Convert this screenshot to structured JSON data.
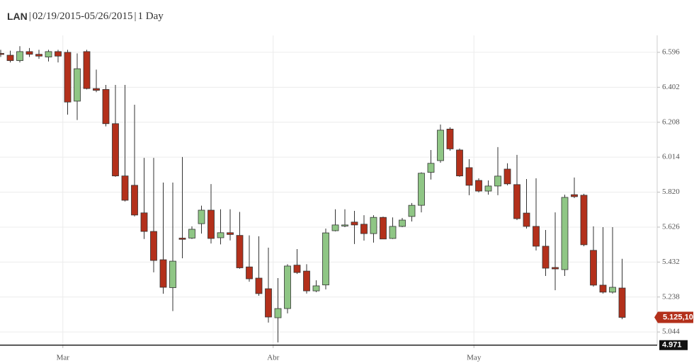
{
  "chart_data": {
    "type": "candlestick",
    "title_parts": [
      "LAN",
      "|",
      "02/19/2015-05/26/2015",
      "|",
      "1 Day"
    ],
    "categories": [
      null,
      null,
      null,
      null,
      null,
      null,
      null,
      "Mar",
      null,
      null,
      null,
      null,
      null,
      null,
      null,
      null,
      null,
      null,
      null,
      null,
      null,
      null,
      null,
      null,
      null,
      null,
      null,
      null,
      null,
      "Abr",
      null,
      null,
      null,
      null,
      null,
      null,
      null,
      null,
      null,
      null,
      null,
      null,
      null,
      null,
      null,
      null,
      null,
      null,
      null,
      null,
      "May",
      null,
      null,
      null,
      null,
      null,
      null,
      null,
      null,
      null,
      null,
      null,
      null,
      null,
      null,
      null
    ],
    "open": [
      6.59,
      6.58,
      6.55,
      6.6,
      6.585,
      6.57,
      6.6,
      6.596,
      6.325,
      6.6,
      6.395,
      6.39,
      6.2,
      5.91,
      5.858,
      5.705,
      5.602,
      5.445,
      5.29,
      5.565,
      5.565,
      5.645,
      5.72,
      5.567,
      5.595,
      5.58,
      5.405,
      5.343,
      5.284,
      5.123,
      5.174,
      5.415,
      5.382,
      5.272,
      5.305,
      5.606,
      5.632,
      5.654,
      5.642,
      5.59,
      5.68,
      5.563,
      5.63,
      5.685,
      5.747,
      5.93,
      5.995,
      6.17,
      6.054,
      5.956,
      5.885,
      5.826,
      5.854,
      5.948,
      5.862,
      5.704,
      5.63,
      5.52,
      5.402,
      5.39,
      5.806,
      5.803,
      5.497,
      5.304,
      5.265,
      5.288
    ],
    "high": [
      6.61,
      6.605,
      6.63,
      6.62,
      6.61,
      6.61,
      6.61,
      6.61,
      6.59,
      6.61,
      6.5,
      6.415,
      6.415,
      6.415,
      6.305,
      6.01,
      6.01,
      5.873,
      5.873,
      6.015,
      5.63,
      5.745,
      5.865,
      5.725,
      5.725,
      5.71,
      5.58,
      5.575,
      5.512,
      5.343,
      5.42,
      5.504,
      5.42,
      5.331,
      5.618,
      5.725,
      5.725,
      5.716,
      5.692,
      5.692,
      5.684,
      5.68,
      5.677,
      5.76,
      5.93,
      6.054,
      6.195,
      6.18,
      6.062,
      6.003,
      5.897,
      5.885,
      6.07,
      5.98,
      6.027,
      5.893,
      5.897,
      5.61,
      5.708,
      5.806,
      5.901,
      5.811,
      5.63,
      5.626,
      5.626,
      5.45
    ],
    "low": [
      6.57,
      6.54,
      6.54,
      6.57,
      6.56,
      6.545,
      6.54,
      6.25,
      6.22,
      6.39,
      6.375,
      6.185,
      5.905,
      5.768,
      5.685,
      5.56,
      5.375,
      5.256,
      5.16,
      5.453,
      5.56,
      5.59,
      5.535,
      5.53,
      5.552,
      5.395,
      5.323,
      5.245,
      5.096,
      4.986,
      5.147,
      5.366,
      5.257,
      5.265,
      5.28,
      5.602,
      5.626,
      5.532,
      5.551,
      5.54,
      5.56,
      5.56,
      5.626,
      5.657,
      5.708,
      5.89,
      5.983,
      6.05,
      5.905,
      5.803,
      5.818,
      5.806,
      5.803,
      5.858,
      5.665,
      5.618,
      5.496,
      5.355,
      5.276,
      5.355,
      5.787,
      5.52,
      5.296,
      5.257,
      5.257,
      5.115
    ],
    "close": [
      6.585,
      6.55,
      6.6,
      6.585,
      6.575,
      6.6,
      6.575,
      6.32,
      6.505,
      6.395,
      6.385,
      6.2,
      5.91,
      5.775,
      5.693,
      5.602,
      5.441,
      5.292,
      5.437,
      5.558,
      5.614,
      5.72,
      5.563,
      5.595,
      5.585,
      5.4,
      5.339,
      5.257,
      5.127,
      5.174,
      5.41,
      5.374,
      5.272,
      5.3,
      5.594,
      5.638,
      5.638,
      5.638,
      5.59,
      5.68,
      5.56,
      5.63,
      5.665,
      5.747,
      5.925,
      5.98,
      6.164,
      6.06,
      5.91,
      5.858,
      5.826,
      5.854,
      5.909,
      5.866,
      5.673,
      5.63,
      5.52,
      5.398,
      5.394,
      5.791,
      5.795,
      5.528,
      5.304,
      5.265,
      5.292,
      5.125
    ],
    "up_color": "#8fc685",
    "down_color": "#b3301b",
    "ylim": [
      4.97,
      6.69
    ],
    "yticks": [
      6.596,
      6.402,
      6.208,
      6.014,
      {
        "value": 5.82,
        "label": "5.820"
      },
      5.626,
      5.432,
      5.238,
      5.044
    ],
    "last_price": {
      "value": 5.125,
      "label": "5.125,10"
    },
    "reference_line": {
      "value": 4.971,
      "label": "4.971"
    },
    "grid": true
  }
}
